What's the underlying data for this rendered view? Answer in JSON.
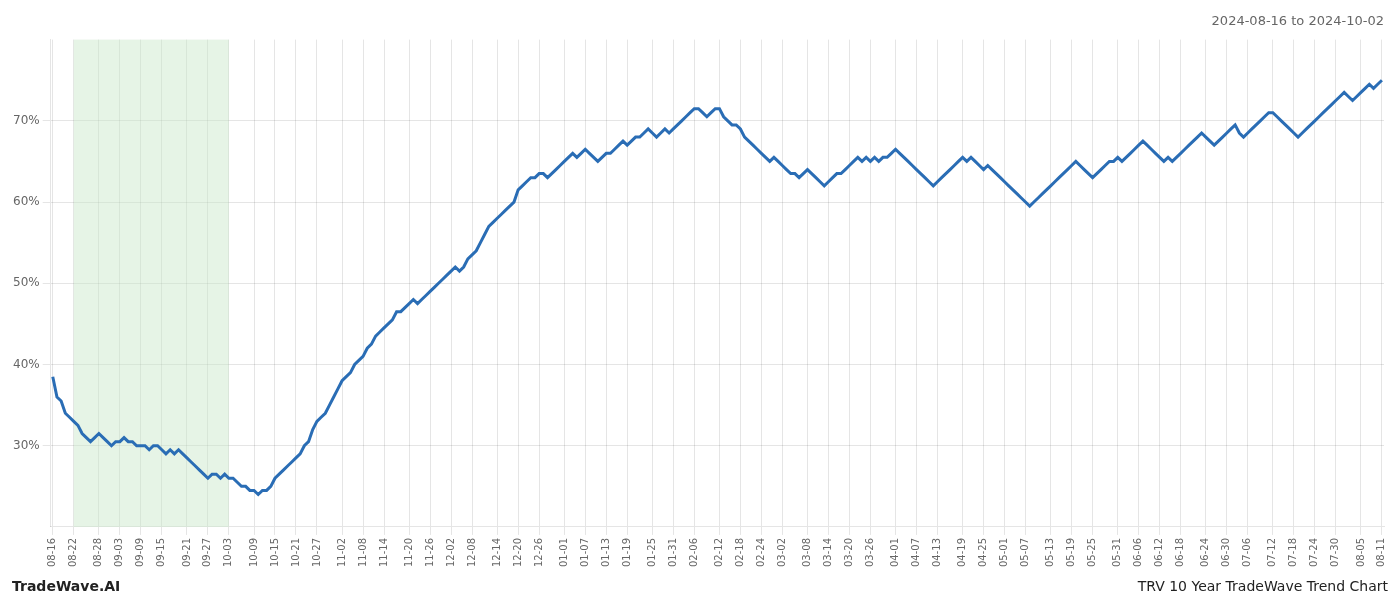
{
  "chart_data": {
    "type": "line",
    "title": "2024-08-16 to 2024-10-02",
    "annotations": [
      "TradeWave.AI",
      "TRV 10 Year TradeWave Trend Chart"
    ],
    "categories": [
      "08-16",
      null,
      null,
      null,
      null,
      "08-22",
      null,
      null,
      null,
      null,
      null,
      "08-28",
      null,
      null,
      null,
      null,
      "09-03",
      null,
      null,
      null,
      null,
      "09-09",
      null,
      null,
      null,
      null,
      "09-15",
      null,
      null,
      null,
      null,
      null,
      "09-21",
      null,
      null,
      null,
      null,
      "09-27",
      null,
      null,
      null,
      null,
      "10-03",
      null,
      null,
      null,
      null,
      null,
      "10-09",
      null,
      null,
      null,
      null,
      "10-15",
      null,
      null,
      null,
      null,
      "10-21",
      null,
      null,
      null,
      null,
      "10-27",
      null,
      null,
      null,
      null,
      null,
      "11-02",
      null,
      null,
      null,
      null,
      "11-08",
      null,
      null,
      null,
      null,
      "11-14",
      null,
      null,
      null,
      null,
      null,
      "11-20",
      null,
      null,
      null,
      null,
      "11-26",
      null,
      null,
      null,
      null,
      "12-02",
      null,
      null,
      null,
      null,
      "12-08",
      null,
      null,
      null,
      null,
      null,
      "12-14",
      null,
      null,
      null,
      null,
      "12-20",
      null,
      null,
      null,
      null,
      "12-26",
      null,
      null,
      null,
      null,
      null,
      "01-01",
      null,
      null,
      null,
      null,
      "01-07",
      null,
      null,
      null,
      null,
      "01-13",
      null,
      null,
      null,
      null,
      "01-19",
      null,
      null,
      null,
      null,
      null,
      "01-25",
      null,
      null,
      null,
      null,
      "01-31",
      null,
      null,
      null,
      null,
      "02-06",
      null,
      null,
      null,
      null,
      null,
      "02-12",
      null,
      null,
      null,
      null,
      "02-18",
      null,
      null,
      null,
      null,
      "02-24",
      null,
      null,
      null,
      null,
      "03-02",
      null,
      null,
      null,
      null,
      null,
      "03-08",
      null,
      null,
      null,
      null,
      "03-14",
      null,
      null,
      null,
      null,
      "03-20",
      null,
      null,
      null,
      null,
      "03-26",
      null,
      null,
      null,
      null,
      null,
      "04-01",
      null,
      null,
      null,
      null,
      "04-07",
      null,
      null,
      null,
      null,
      "04-13",
      null,
      null,
      null,
      null,
      null,
      "04-19",
      null,
      null,
      null,
      null,
      "04-25",
      null,
      null,
      null,
      null,
      "05-01",
      null,
      null,
      null,
      null,
      "05-07",
      null,
      null,
      null,
      null,
      null,
      "05-13",
      null,
      null,
      null,
      null,
      "05-19",
      null,
      null,
      null,
      null,
      "05-25",
      null,
      null,
      null,
      null,
      null,
      "05-31",
      null,
      null,
      null,
      null,
      "06-06",
      null,
      null,
      null,
      null,
      "06-12",
      null,
      null,
      null,
      null,
      "06-18",
      null,
      null,
      null,
      null,
      null,
      "06-24",
      null,
      null,
      null,
      null,
      "06-30",
      null,
      null,
      null,
      null,
      "07-06",
      null,
      null,
      null,
      null,
      null,
      "07-12",
      null,
      null,
      null,
      null,
      "07-18",
      null,
      null,
      null,
      null,
      "07-24",
      null,
      null,
      null,
      null,
      "07-30",
      null,
      null,
      null,
      null,
      null,
      "08-05",
      null,
      null,
      null,
      null,
      "08-11"
    ],
    "values": [
      38.5,
      36.0,
      35.5,
      34.0,
      33.5,
      33.0,
      32.5,
      31.5,
      31.0,
      30.5,
      31.0,
      31.5,
      31.0,
      30.5,
      30.0,
      30.5,
      30.5,
      31.0,
      30.5,
      30.5,
      30.0,
      30.0,
      30.0,
      29.5,
      30.0,
      30.0,
      29.5,
      29.0,
      29.5,
      29.0,
      29.5,
      29.0,
      28.5,
      28.0,
      27.5,
      27.0,
      26.5,
      26.0,
      26.5,
      26.5,
      26.0,
      26.5,
      26.0,
      26.0,
      25.5,
      25.0,
      25.0,
      24.5,
      24.5,
      24.0,
      24.5,
      24.5,
      25.0,
      26.0,
      26.5,
      27.0,
      27.5,
      28.0,
      28.5,
      29.0,
      30.0,
      30.5,
      32.0,
      33.0,
      33.5,
      34.0,
      35.0,
      36.0,
      37.0,
      38.0,
      38.5,
      39.0,
      40.0,
      40.5,
      41.0,
      42.0,
      42.5,
      43.5,
      44.0,
      44.5,
      45.0,
      45.5,
      46.5,
      46.5,
      47.0,
      47.5,
      48.0,
      47.5,
      48.0,
      48.5,
      49.0,
      49.5,
      50.0,
      50.5,
      51.0,
      51.5,
      52.0,
      51.5,
      52.0,
      53.0,
      53.5,
      54.0,
      55.0,
      56.0,
      57.0,
      57.5,
      58.0,
      58.5,
      59.0,
      59.5,
      60.0,
      61.5,
      62.0,
      62.5,
      63.0,
      63.0,
      63.5,
      63.5,
      63.0,
      63.5,
      64.0,
      64.5,
      65.0,
      65.5,
      66.0,
      65.5,
      66.0,
      66.5,
      66.0,
      65.5,
      65.0,
      65.5,
      66.0,
      66.0,
      66.5,
      67.0,
      67.5,
      67.0,
      67.5,
      68.0,
      68.0,
      68.5,
      69.0,
      68.5,
      68.0,
      68.5,
      69.0,
      68.5,
      69.0,
      69.5,
      70.0,
      70.5,
      71.0,
      71.5,
      71.5,
      71.0,
      70.5,
      71.0,
      71.5,
      71.5,
      70.5,
      70.0,
      69.5,
      69.5,
      69.0,
      68.0,
      67.5,
      67.0,
      66.5,
      66.0,
      65.5,
      65.0,
      65.5,
      65.0,
      64.5,
      64.0,
      63.5,
      63.5,
      63.0,
      63.5,
      64.0,
      63.5,
      63.0,
      62.5,
      62.0,
      62.5,
      63.0,
      63.5,
      63.5,
      64.0,
      64.5,
      65.0,
      65.5,
      65.0,
      65.5,
      65.0,
      65.5,
      65.0,
      65.5,
      65.5,
      66.0,
      66.5,
      66.0,
      65.5,
      65.0,
      64.5,
      64.0,
      63.5,
      63.0,
      62.5,
      62.0,
      62.5,
      63.0,
      63.5,
      64.0,
      64.5,
      65.0,
      65.5,
      65.0,
      65.5,
      65.0,
      64.5,
      64.0,
      64.5,
      64.0,
      63.5,
      63.0,
      62.5,
      62.0,
      61.5,
      61.0,
      60.5,
      60.0,
      59.5,
      60.0,
      60.5,
      61.0,
      61.5,
      62.0,
      62.5,
      63.0,
      63.5,
      64.0,
      64.5,
      65.0,
      64.5,
      64.0,
      63.5,
      63.0,
      63.5,
      64.0,
      64.5,
      65.0,
      65.0,
      65.5,
      65.0,
      65.5,
      66.0,
      66.5,
      67.0,
      67.5,
      67.0,
      66.5,
      66.0,
      65.5,
      65.0,
      65.5,
      65.0,
      65.5,
      66.0,
      66.5,
      67.0,
      67.5,
      68.0,
      68.5,
      68.0,
      67.5,
      67.0,
      67.5,
      68.0,
      68.5,
      69.0,
      69.5,
      68.5,
      68.0,
      68.5,
      69.0,
      69.5,
      70.0,
      70.5,
      71.0,
      71.0,
      70.5,
      70.0,
      69.5,
      69.0,
      68.5,
      68.0,
      68.5,
      69.0,
      69.5,
      70.0,
      70.5,
      71.0,
      71.5,
      72.0,
      72.5,
      73.0,
      73.5,
      73.0,
      72.5,
      73.0,
      73.5,
      74.0,
      74.5,
      74.0,
      74.5,
      75.0
    ],
    "color": "#2a6db5",
    "ylim": [
      20,
      80
    ],
    "yticks": [
      {
        "value": 30,
        "label": "30%"
      },
      {
        "value": 40,
        "label": "40%"
      },
      {
        "value": 50,
        "label": "50%"
      },
      {
        "value": 60,
        "label": "60%"
      },
      {
        "value": 70,
        "label": "70%"
      }
    ],
    "grid": true,
    "highlight": {
      "start": "08-22",
      "end": "10-03",
      "color": "#c8e6c8"
    }
  }
}
